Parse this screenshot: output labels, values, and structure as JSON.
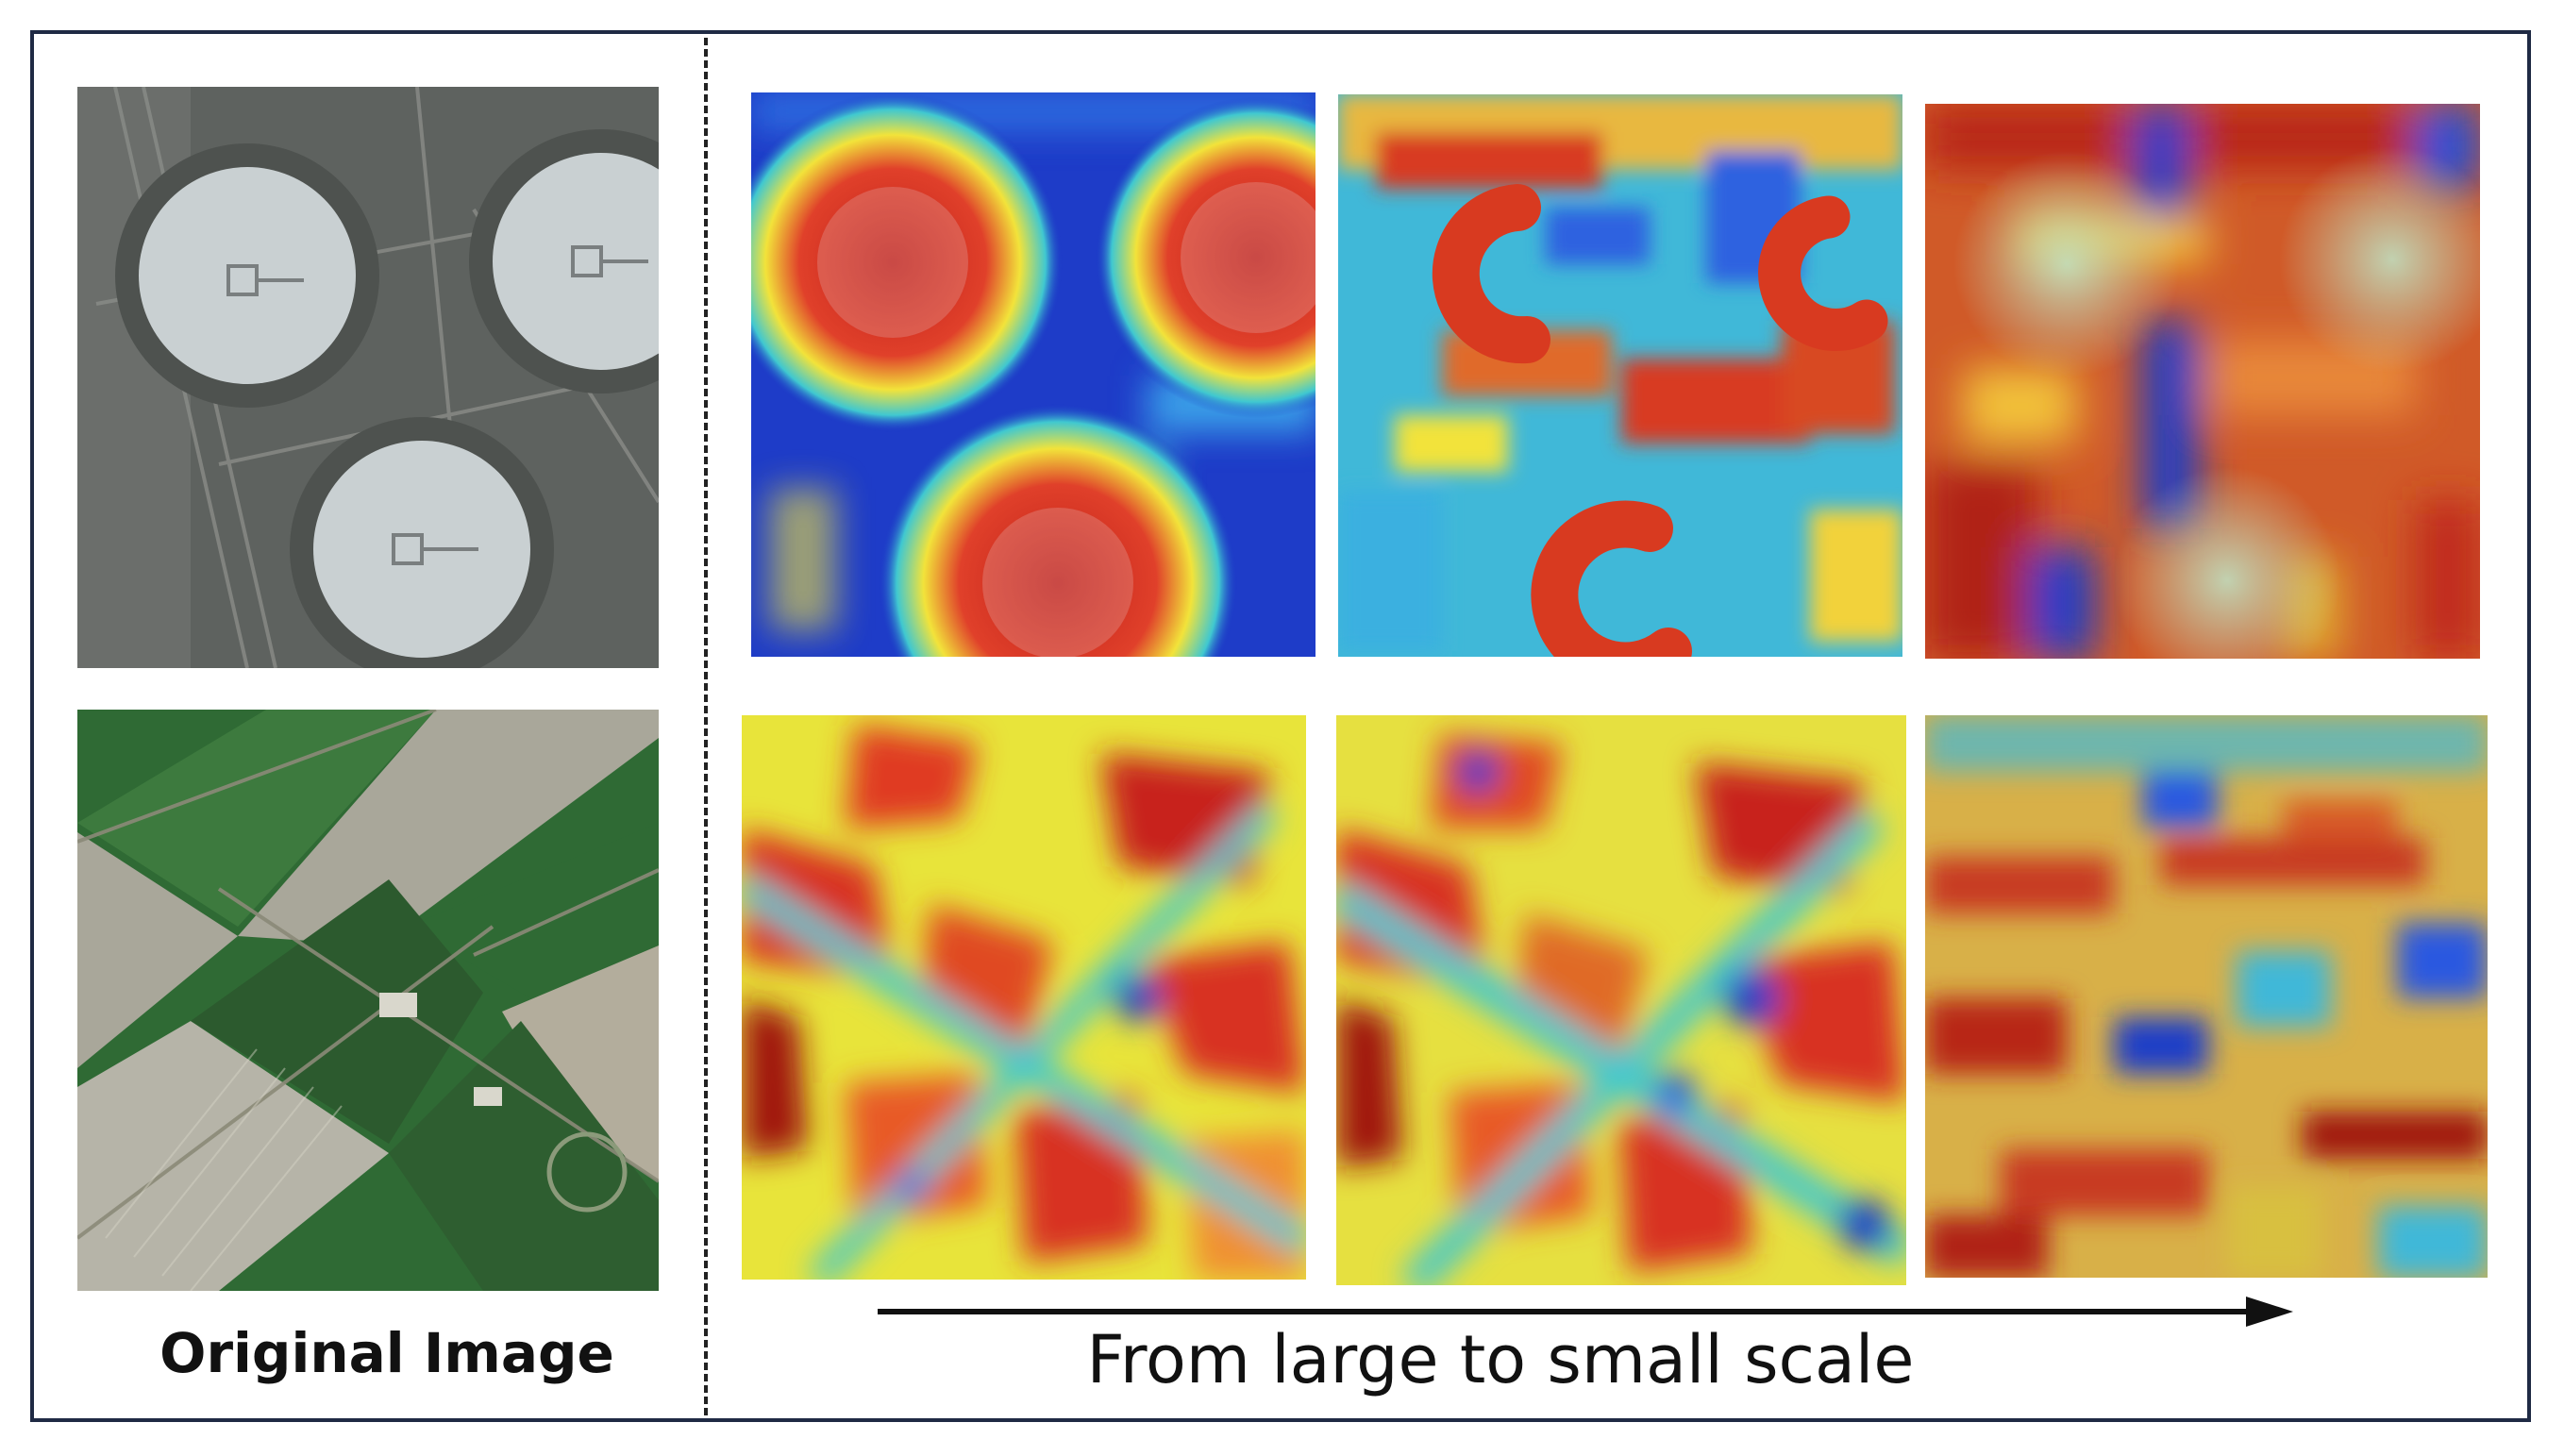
{
  "left_caption": "Original Image",
  "right_caption": "From large to small scale",
  "colors": {
    "frame": "#1f2a44",
    "heat_low": "#1e3cc8",
    "heat_mid": "#f2e33a",
    "heat_high": "#c0201a",
    "field_dark": "#2f6a34",
    "field_light": "#a9a79a",
    "tank_gray": "#c9d0d2",
    "ground_gray": "#5e625f"
  },
  "rows": [
    {
      "name": "oil-tank-scene",
      "panels": [
        "original",
        "heatmap-large-scale",
        "heatmap-medium-scale",
        "heatmap-small-scale"
      ]
    },
    {
      "name": "farmland-scene",
      "panels": [
        "original",
        "heatmap-large-scale",
        "heatmap-medium-scale",
        "heatmap-small-scale"
      ]
    }
  ]
}
